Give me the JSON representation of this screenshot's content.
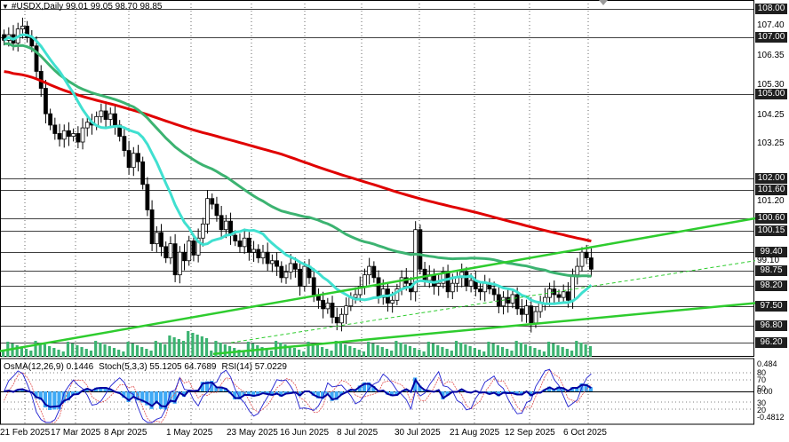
{
  "header": {
    "menu_symbol": "▼",
    "title": "#USDX,Daily  99.01 99.05 98.70 98.85"
  },
  "indicators": {
    "osma": "OsMA(12,26,9) 0.1446",
    "stoch": "Stoch(5,3,3) 55.1205 64.7689",
    "rsi": "RSI(14) 57.0229"
  },
  "price_levels": [
    {
      "label": "108.00",
      "value": 108.0
    },
    {
      "label": "107.00",
      "value": 107.0
    },
    {
      "label": "105.00",
      "value": 105.0
    },
    {
      "label": "102.00",
      "value": 102.0
    },
    {
      "label": "101.60",
      "value": 101.6
    },
    {
      "label": "100.60",
      "value": 100.6
    },
    {
      "label": "100.15",
      "value": 100.15
    },
    {
      "label": "99.40",
      "value": 99.4
    },
    {
      "label": "98.75",
      "value": 98.75
    },
    {
      "label": "98.20",
      "value": 98.2
    },
    {
      "label": "97.50",
      "value": 97.5
    },
    {
      "label": "96.80",
      "value": 96.8
    },
    {
      "label": "96.20",
      "value": 96.2
    }
  ],
  "price_ticks": [
    {
      "label": "107.40",
      "value": 107.4
    },
    {
      "label": "106.35",
      "value": 106.35
    },
    {
      "label": "105.30",
      "value": 105.3
    },
    {
      "label": "104.25",
      "value": 104.25
    },
    {
      "label": "103.25",
      "value": 103.25
    },
    {
      "label": "101.20",
      "value": 101.2
    },
    {
      "label": "99.10",
      "value": 99.1
    }
  ],
  "indicator_ticks": [
    {
      "label": "0.484",
      "pos": "osma_max"
    },
    {
      "label": "80",
      "pos": "80"
    },
    {
      "label": "70",
      "pos": "70"
    },
    {
      "label": "50",
      "pos": "50"
    },
    {
      "label": "0.00",
      "pos": "zero"
    },
    {
      "label": "30",
      "pos": "30"
    },
    {
      "label": "20",
      "pos": "20"
    },
    {
      "label": "-0.4812",
      "pos": "osma_min"
    }
  ],
  "date_axis": [
    "21 Feb 2025",
    "17 Mar 2025",
    "8 Apr 2025",
    "1 May 2025",
    "23 May 2025",
    "16 Jun 2025",
    "8 Jul 2025",
    "30 Jul 2025",
    "21 Aug 2025",
    "12 Sep 2025",
    "6 Oct 2025"
  ],
  "colors": {
    "background": "#ffffff",
    "candle": "#000000",
    "ema_fast": "#40e0d0",
    "ema_mid": "#3cb371",
    "ema_slow": "#e00000",
    "trendline": "#2ecc2e",
    "osma_bar": "#3fa9f5",
    "stoch_main": "#1f1fd0",
    "stoch_signal": "#e05050",
    "rsi": "#0000a0",
    "level_line": "#000000",
    "grid": "#000000"
  },
  "chart_data": {
    "type": "candlestick",
    "symbol": "#USDX",
    "timeframe": "Daily",
    "ohlc_last": {
      "open": 99.01,
      "high": 99.05,
      "low": 98.7,
      "close": 98.85
    },
    "ylim": [
      95.7,
      108.2
    ],
    "closes": [
      106.9,
      107.1,
      106.8,
      107.3,
      107.4,
      107.0,
      106.7,
      105.8,
      105.2,
      104.3,
      103.9,
      103.6,
      103.4,
      103.7,
      103.5,
      103.6,
      103.3,
      103.8,
      104.0,
      103.9,
      104.2,
      104.4,
      104.1,
      104.3,
      103.9,
      103.5,
      103.0,
      102.4,
      102.9,
      102.6,
      101.8,
      100.9,
      99.7,
      100.1,
      99.6,
      99.2,
      99.7,
      98.6,
      99.4,
      99.1,
      99.8,
      99.3,
      99.9,
      100.4,
      101.3,
      101.1,
      100.7,
      100.2,
      100.5,
      100.0,
      99.8,
      99.6,
      99.9,
      99.4,
      99.5,
      99.2,
      99.4,
      99.0,
      99.1,
      98.9,
      98.5,
      98.7,
      99.0,
      98.8,
      98.2,
      98.9,
      98.5,
      97.9,
      97.7,
      97.4,
      97.6,
      97.1,
      96.9,
      97.2,
      97.5,
      97.8,
      97.9,
      98.2,
      98.6,
      98.9,
      98.5,
      97.8,
      98.1,
      97.6,
      97.7,
      98.1,
      98.5,
      98.3,
      98.0,
      100.2,
      98.8,
      98.4,
      98.6,
      98.2,
      98.3,
      98.7,
      98.0,
      98.3,
      98.5,
      98.7,
      98.2,
      98.4,
      98.1,
      98.0,
      98.3,
      98.1,
      97.9,
      97.5,
      97.8,
      97.6,
      97.9,
      97.4,
      97.2,
      97.5,
      96.9,
      97.3,
      97.6,
      97.8,
      98.1,
      97.9,
      97.8,
      98.0,
      97.7,
      98.6,
      98.9,
      99.4,
      99.2,
      98.8
    ],
    "volumes_shown": true,
    "moving_averages": [
      {
        "role": "fast",
        "start": 107.4,
        "end": 98.3
      },
      {
        "role": "mid",
        "start": 106.6,
        "end": 99.35
      },
      {
        "role": "slow",
        "start": 105.6,
        "end": 100.1
      }
    ],
    "trendlines": [
      {
        "start": [
          0,
          95.9
        ],
        "end": [
          850,
          100.6
        ]
      },
      {
        "start": [
          240,
          95.8
        ],
        "end": [
          850,
          97.6
        ]
      },
      {
        "start": [
          260,
          96.2
        ],
        "end": [
          850,
          99.1
        ],
        "dashed": true
      }
    ]
  }
}
